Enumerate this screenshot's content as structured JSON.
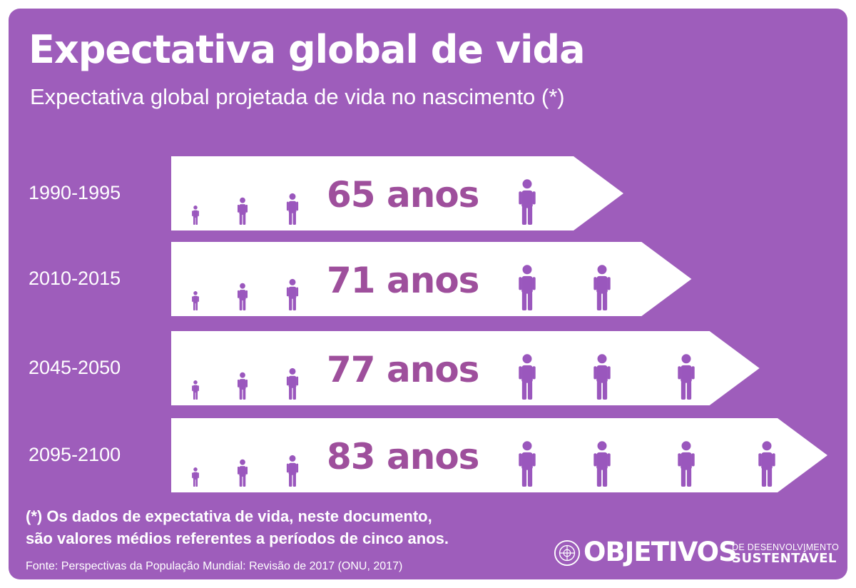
{
  "header": {
    "title": "Expectativa global de vida",
    "subtitle": "Expectativa global projetada de vida no nascimento (*)"
  },
  "chart_data": {
    "type": "bar",
    "orientation": "horizontal",
    "title": "Expectativa global de vida",
    "subtitle": "Expectativa global projetada de vida no nascimento (*)",
    "categories": [
      "1990-1995",
      "2010-2015",
      "2045-2050",
      "2095-2100"
    ],
    "values": [
      65,
      71,
      77,
      83
    ],
    "value_labels": [
      "65 anos",
      "71 anos",
      "77 anos",
      "83 anos"
    ],
    "unit": "anos",
    "figures_per_bar": [
      4,
      5,
      6,
      7
    ],
    "xlabel": "",
    "ylabel": "",
    "grid": false,
    "legend": "none"
  },
  "footnote": {
    "line1": "(*) Os dados de expectativa de vida, neste documento,",
    "line2": "são valores médios referentes a períodos de cinco anos."
  },
  "source": "Fonte: Perspectivas da População Mundial: Revisão de 2017 (ONU, 2017)",
  "logo": {
    "word": "OBJETIVOS",
    "line1": "DE DESENVOLVIMENTO",
    "line2": "SUSTENTÁVEL",
    "emblem_icon": "un-emblem-icon"
  },
  "colors": {
    "background": "#9e5dbb",
    "arrow_fill": "#ffffff",
    "accent": "#9e4f9c",
    "figure": "#9a57bd"
  }
}
